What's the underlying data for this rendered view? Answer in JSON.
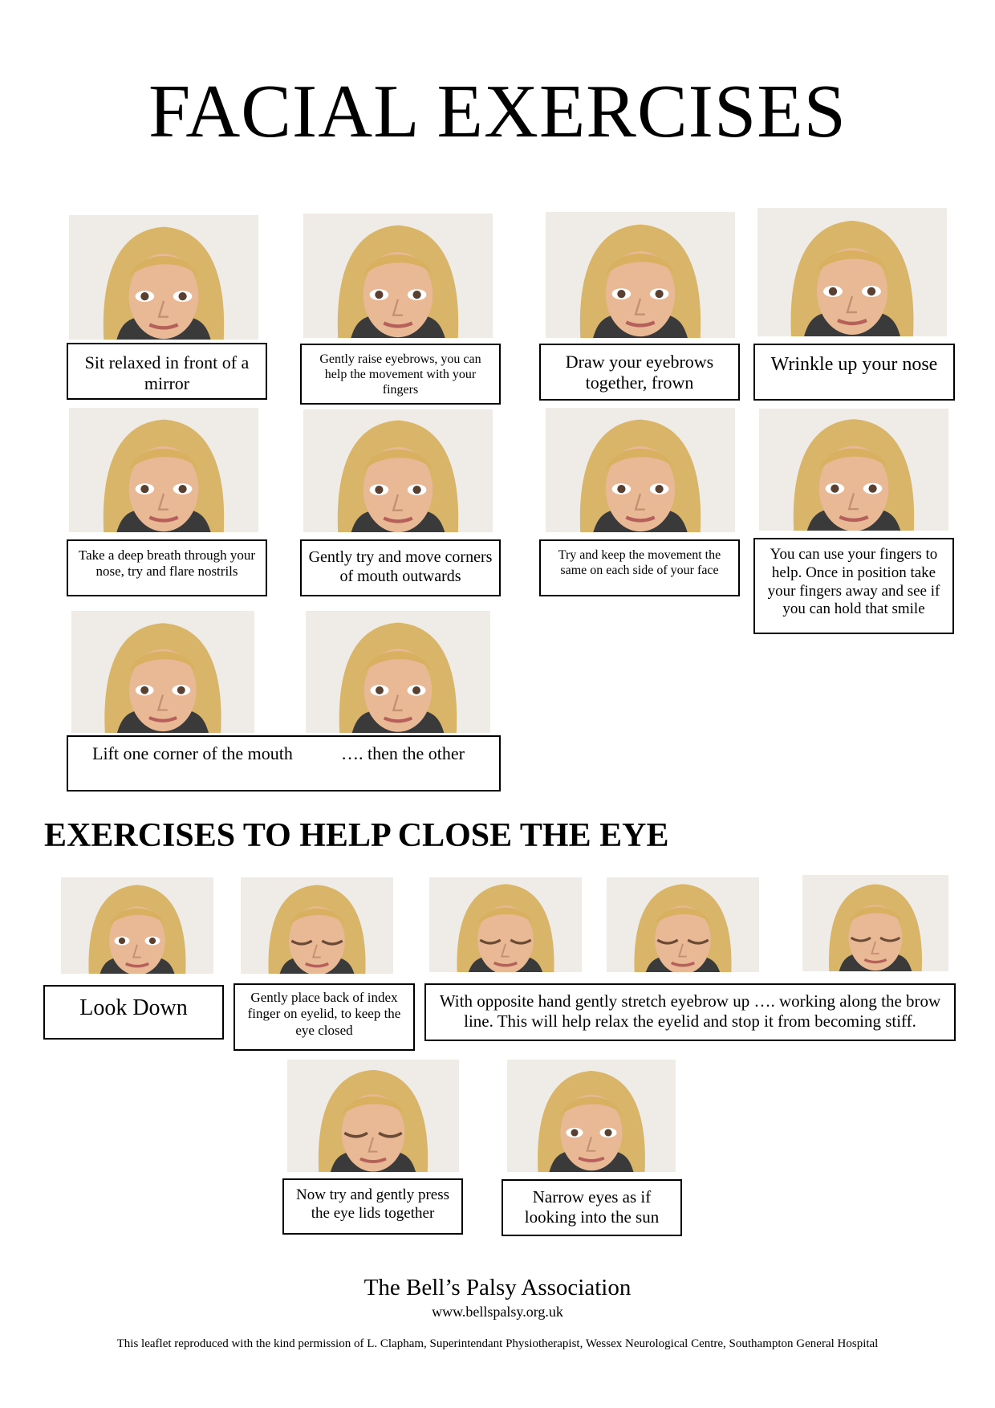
{
  "title": "FACIAL EXERCISES",
  "eye_section_title": "EXERCISES TO HELP CLOSE THE EYE",
  "facial": {
    "c1": "Sit relaxed in front of a mirror",
    "c2": "Gently raise eyebrows, you can help the movement with your fingers",
    "c3": "Draw your eyebrows together, frown",
    "c4": "Wrinkle up your nose",
    "c5": "Take a deep breath through your nose, try and flare nostrils",
    "c6": "Gently try and move corners of mouth outwards",
    "c7": "Try and keep the movement the same on each side of your face",
    "c8": "You can use your fingers to help. Once in position take your fingers away and see if you can hold that smile",
    "c9a": "Lift one corner of the mouth",
    "c9b": "…. then the other"
  },
  "eye": {
    "e1": "Look Down",
    "e2": "Gently place back of index finger on eyelid, to keep the eye closed",
    "e3": "With opposite hand gently stretch eyebrow up …. working along the brow line. This will help relax the eyelid and stop it from becoming stiff.",
    "e4": "Now try and gently press the eye lids together",
    "e5": "Narrow eyes as if looking into the sun"
  },
  "footer": {
    "org": "The Bell’s Palsy Association",
    "url": "www.bellspalsy.org.uk",
    "note": "This leaflet reproduced with the kind permission of L. Clapham, Superintendant Physiotherapist, Wessex Neurological Centre, Southampton General Hospital"
  }
}
